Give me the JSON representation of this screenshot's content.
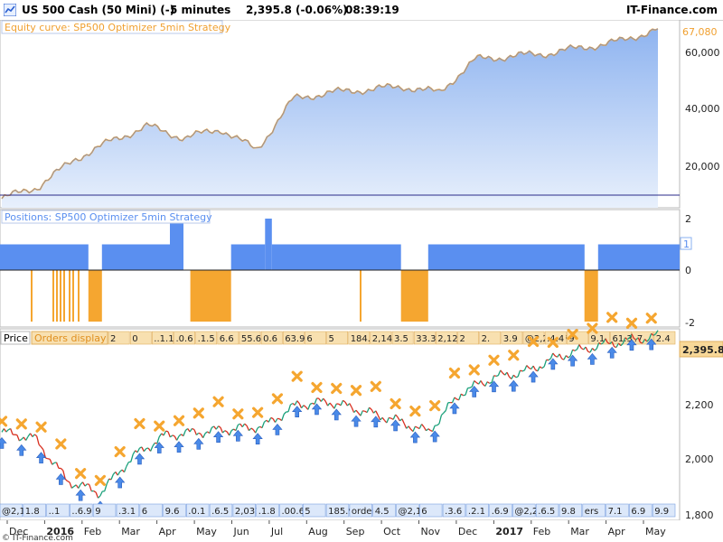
{
  "header": {
    "instrument": "US 500 Cash (50 Mini) (-)",
    "timeframe": "5 minutes",
    "last_quote": "2,395.8 (-0.06%)",
    "time": "08:39:19",
    "brand": "IT-Finance.com"
  },
  "colors": {
    "equity_fill": "#a9c8f4",
    "equity_line": "#f0a030",
    "long": "#5a8ff0",
    "short": "#f5a630",
    "price_label_bg": "#f8d898",
    "buy_arrow": "#4a8ae8",
    "sell_cross": "#f5a630"
  },
  "panels": {
    "equity": {
      "title": "Equity curve: SP500 Optimizer 5min Strategy",
      "last_value_label": "67,080",
      "y_ticks": [
        "60,000",
        "40,000",
        "20,000"
      ]
    },
    "positions": {
      "title": "Positions: SP500 Optimizer 5min Strategy",
      "current_label": "1",
      "y_ticks": [
        "2",
        "0",
        "-2"
      ]
    },
    "price": {
      "title_price": "Price",
      "title_orders": "Orders display",
      "last_price_label": "2,395.8",
      "y_ticks": [
        "2,200",
        "2,000",
        "1,800"
      ],
      "top_order_labels": [
        "2",
        "0",
        "..1.1",
        ".0.6",
        ".1.5",
        "6.6",
        "55.6",
        "0.6",
        "63.9",
        "6",
        "5",
        "184.1",
        "2,147.9",
        "3.5",
        "33.3",
        "2,128.2",
        "2",
        "2.",
        "3.9",
        "@2,290.7",
        ".4.4",
        "9",
        "9.1",
        "61.3",
        ".7",
        "2.4"
      ],
      "bottom_order_labels": [
        "@2,193.0",
        "1.8",
        "..1",
        "..6.9",
        "9",
        ".3.1",
        "6",
        "9.6",
        ".0.1",
        ".6.5",
        "2,031.6",
        ".1.8",
        ".00.6",
        "5",
        "185.9",
        "orders",
        "4.5",
        "@2,113.9",
        "6",
        ".3.6",
        ".2.1",
        ".6.9",
        "@2,294.6",
        ".6.5",
        "9.8",
        "ers",
        "7.1",
        "6.9",
        "9.9"
      ],
      "copyright": "© IT-Finance.com"
    }
  },
  "chart_data": [
    {
      "type": "area",
      "title": "Equity curve: SP500 Optimizer 5min Strategy",
      "ylim": [
        8000,
        70000
      ],
      "x": [
        "2015-12",
        "2016-01",
        "2016-02",
        "2016-03",
        "2016-04",
        "2016-05",
        "2016-06",
        "2016-06b",
        "2016-07",
        "2016-08",
        "2016-09",
        "2016-10",
        "2016-11",
        "2016-12",
        "2017-01",
        "2017-02",
        "2017-03",
        "2017-04",
        "2017-05"
      ],
      "values": [
        11000,
        15000,
        24000,
        30000,
        35000,
        31000,
        34000,
        27000,
        44000,
        46000,
        47000,
        48000,
        46000,
        57000,
        58000,
        59000,
        61000,
        63000,
        67080
      ],
      "grid": false
    },
    {
      "type": "bar",
      "title": "Positions: SP500 Optimizer 5min Strategy",
      "ylim": [
        -2,
        2
      ],
      "segments": [
        {
          "from": 0.0,
          "to": 0.13,
          "value": 1
        },
        {
          "from": 0.13,
          "to": 0.15,
          "value": -2
        },
        {
          "from": 0.15,
          "to": 0.25,
          "value": 1
        },
        {
          "from": 0.25,
          "to": 0.27,
          "value": 2
        },
        {
          "from": 0.28,
          "to": 0.34,
          "value": -2
        },
        {
          "from": 0.34,
          "to": 0.39,
          "value": 1
        },
        {
          "from": 0.39,
          "to": 0.4,
          "value": 2
        },
        {
          "from": 0.4,
          "to": 0.59,
          "value": 1
        },
        {
          "from": 0.59,
          "to": 0.63,
          "value": -2
        },
        {
          "from": 0.63,
          "to": 0.86,
          "value": 1
        },
        {
          "from": 0.86,
          "to": 0.88,
          "value": -2
        },
        {
          "from": 0.88,
          "to": 1.0,
          "value": 1
        }
      ]
    },
    {
      "type": "line",
      "title": "Price",
      "ylim": [
        1790,
        2420
      ],
      "x_ticks": [
        "Dec",
        "2016",
        "Feb",
        "Mar",
        "Apr",
        "May",
        "Jun",
        "Jul",
        "Aug",
        "Sep",
        "Oct",
        "Nov",
        "Dec",
        "2017",
        "Feb",
        "Mar",
        "Apr",
        "May"
      ],
      "values": [
        2080,
        2060,
        1920,
        1880,
        2000,
        2070,
        2080,
        2090,
        2100,
        2170,
        2180,
        2150,
        2120,
        2080,
        2210,
        2260,
        2280,
        2330,
        2360,
        2380,
        2395.8
      ]
    }
  ]
}
